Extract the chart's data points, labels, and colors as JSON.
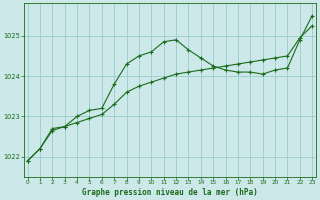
{
  "title": "Graphe pression niveau de la mer (hPa)",
  "background_color": "#cce8e8",
  "grid_color": "#99cccc",
  "line_color": "#1a6b1a",
  "x_ticks": [
    0,
    1,
    2,
    3,
    4,
    5,
    6,
    7,
    8,
    9,
    10,
    11,
    12,
    13,
    14,
    15,
    16,
    17,
    18,
    19,
    20,
    21,
    22,
    23
  ],
  "y_ticks": [
    1022,
    1023,
    1024,
    1025
  ],
  "ylim": [
    1021.5,
    1025.8
  ],
  "xlim": [
    -0.3,
    23.3
  ],
  "series1_y": [
    1021.9,
    1022.2,
    1022.65,
    1022.75,
    1022.85,
    1022.95,
    1023.05,
    1023.3,
    1023.6,
    1023.75,
    1023.85,
    1023.95,
    1024.05,
    1024.1,
    1024.15,
    1024.2,
    1024.25,
    1024.3,
    1024.35,
    1024.4,
    1024.45,
    1024.5,
    1024.95,
    1025.25
  ],
  "series2_y": [
    1021.9,
    1022.2,
    1022.7,
    1022.75,
    1023.0,
    1023.15,
    1023.2,
    1023.8,
    1024.3,
    1024.5,
    1024.6,
    1024.85,
    1024.9,
    1024.65,
    1024.45,
    1024.25,
    1024.15,
    1024.1,
    1024.1,
    1024.05,
    1024.15,
    1024.2,
    1024.9,
    1025.5
  ]
}
